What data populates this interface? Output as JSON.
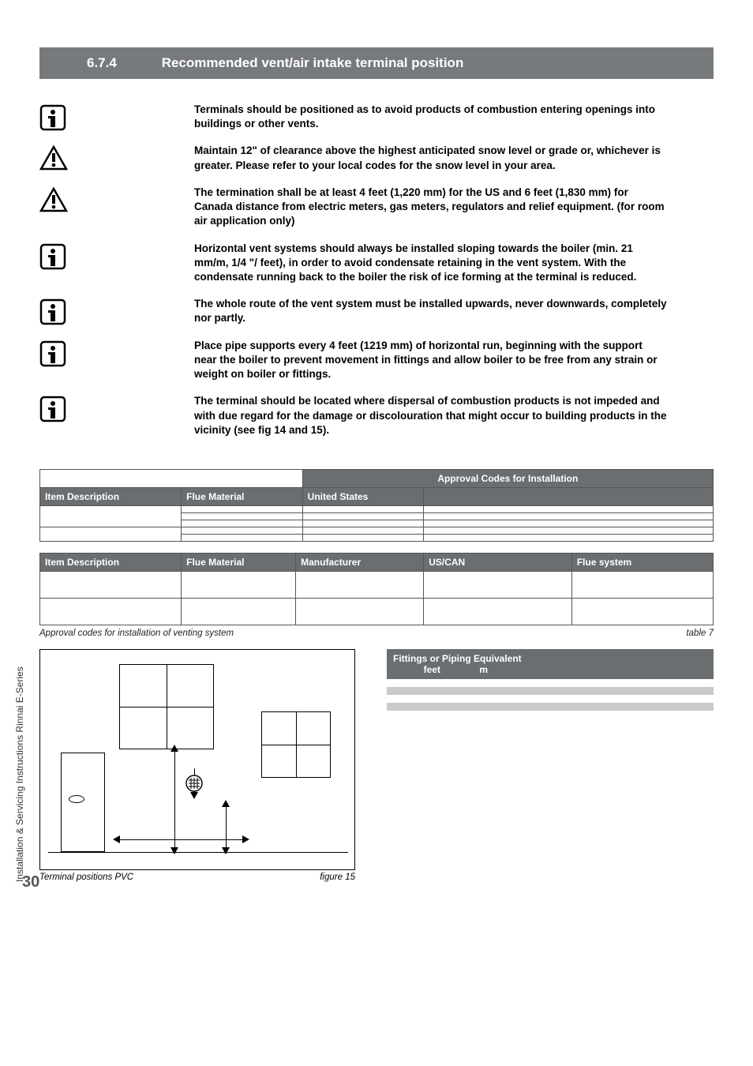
{
  "page": {
    "number": "30",
    "sidebar": "Installation & Servicing Instructions Rinnai E-Series"
  },
  "header": {
    "number": "6.7.4",
    "title": "Recommended vent/air intake terminal position"
  },
  "notes": [
    {
      "icon": "info",
      "text": "Terminals should be positioned as to avoid products of combustion entering openings into buildings or other vents."
    },
    {
      "icon": "warning",
      "text": "Maintain 12\" of clearance above the highest anticipated snow level or grade or, whichever is greater. Please refer to your local codes for the snow level in your area."
    },
    {
      "icon": "warning",
      "text": "The termination shall be at least 4 feet (1,220 mm) for the US and 6 feet (1,830 mm) for Canada distance from electric meters, gas meters, regulators and relief equipment. (for room air application only)"
    },
    {
      "icon": "info",
      "text": "Horizontal vent systems should always be installed sloping towards the boiler (min. 21 mm/m, 1/4 \"/ feet), in order to avoid condensate retaining in the vent system. With the condensate running back to the boiler the risk of ice forming at the terminal is reduced."
    },
    {
      "icon": "info",
      "text": "The whole route of the vent system must be installed upwards, never downwards, completely nor partly."
    },
    {
      "icon": "info",
      "text": "Place pipe supports every 4 feet (1219 mm) of horizontal run, beginning with the support near the boiler to prevent movement in fittings and allow boiler to be free from any strain or weight on boiler or fittings."
    },
    {
      "icon": "info",
      "text": "The terminal should be located where dispersal of combustion products is not impeded and with due regard for the damage or discolouration that might occur to building products in the vicinity (see fig 14 and 15)."
    }
  ],
  "table1": {
    "span_header_blank": "",
    "span_header": "Approval Codes for Installation",
    "headers": [
      "Item Description",
      "Flue Material",
      "United States",
      ""
    ],
    "col_widths": [
      "21%",
      "18%",
      "18%",
      "43%"
    ],
    "rows": [
      [
        "",
        "",
        "",
        ""
      ],
      [
        "",
        "",
        "",
        ""
      ],
      [
        "",
        "",
        "",
        ""
      ],
      [
        "",
        "",
        "",
        ""
      ],
      [
        "",
        "",
        "",
        ""
      ]
    ],
    "rowspans": {
      "0": {
        "0": 3
      },
      "3": {
        "0": 2
      }
    }
  },
  "table2": {
    "headers": [
      "Item Description",
      "Flue Material",
      "Manufacturer",
      "US/CAN",
      "Flue system"
    ],
    "col_widths": [
      "21%",
      "17%",
      "19%",
      "22%",
      "21%"
    ],
    "rows": [
      [
        "",
        "",
        "",
        "",
        ""
      ],
      [
        "",
        "",
        "",
        "",
        ""
      ]
    ],
    "row_heights": [
      "34px",
      "34px"
    ]
  },
  "caption": {
    "left": "Approval codes for installation of venting system",
    "right": "table 7"
  },
  "figure": {
    "caption_left": "Terminal positions PVC",
    "caption_right": "figure 15"
  },
  "fittings": {
    "title": "Fittings or Piping Equivalent",
    "col_feet": "feet",
    "col_m": "m",
    "rows": [
      {
        "label": "",
        "feet": "",
        "m": ""
      },
      {
        "label": "",
        "feet": "",
        "m": ""
      },
      {
        "label": "",
        "feet": "",
        "m": ""
      },
      {
        "label": "",
        "feet": "",
        "m": ""
      }
    ]
  },
  "colors": {
    "header_bg": "#777a7d",
    "table_header_bg": "#6b6e71",
    "stripe_bg": "#c9cacc"
  }
}
